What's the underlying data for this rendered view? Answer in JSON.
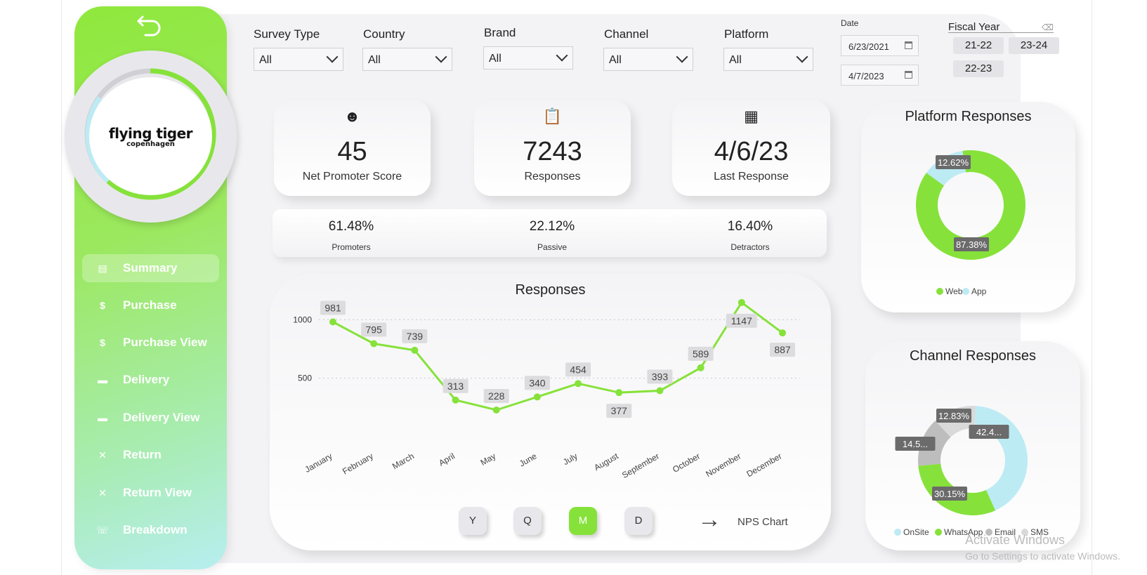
{
  "sidebar": {
    "items": [
      {
        "label": "Summary",
        "icon": "report-icon",
        "glyph": "▤"
      },
      {
        "label": "Purchase",
        "icon": "dollar-icon",
        "glyph": "$"
      },
      {
        "label": "Purchase View",
        "icon": "dollar-icon",
        "glyph": "$"
      },
      {
        "label": "Delivery",
        "icon": "truck-icon",
        "glyph": "▬"
      },
      {
        "label": "Delivery View",
        "icon": "truck-icon",
        "glyph": "▬"
      },
      {
        "label": "Return",
        "icon": "close-icon",
        "glyph": "✕"
      },
      {
        "label": "Return View",
        "icon": "close-icon",
        "glyph": "✕"
      },
      {
        "label": "Breakdown",
        "icon": "phone-icon",
        "glyph": "☏"
      }
    ],
    "active": "Summary"
  },
  "logo": {
    "main": "flying tiger",
    "sub": "copenhagen"
  },
  "filters": {
    "survey_type": {
      "label": "Survey Type",
      "value": "All"
    },
    "country": {
      "label": "Country",
      "value": "All"
    },
    "brand": {
      "label": "Brand",
      "value": "All"
    },
    "channel": {
      "label": "Channel",
      "value": "All"
    },
    "platform": {
      "label": "Platform",
      "value": "All"
    },
    "date": {
      "label": "Date",
      "start": "6/23/2021",
      "end": "4/7/2023"
    },
    "fiscal_year": {
      "label": "Fiscal Year",
      "options": [
        "21-22",
        "23-24",
        "22-23"
      ]
    }
  },
  "kpis": {
    "nps": {
      "value": "45",
      "label": "Net Promoter Score"
    },
    "responses": {
      "value": "7243",
      "label": "Responses"
    },
    "last_response": {
      "value": "4/6/23",
      "label": "Last Response"
    }
  },
  "breakdown": {
    "promoters": {
      "value": "61.48%",
      "label": "Promoters"
    },
    "passive": {
      "value": "22.12%",
      "label": "Passive"
    },
    "detractors": {
      "value": "16.40%",
      "label": "Detractors"
    }
  },
  "period_buttons": {
    "y": "Y",
    "q": "Q",
    "m": "M",
    "d": "D",
    "active": "M"
  },
  "nps_link": "NPS Chart",
  "colors": {
    "green": "#86e23a",
    "light_blue": "#bcebf4",
    "gray": "#bdbdbd",
    "light_gray": "#d9d9d9"
  },
  "chart_data": [
    {
      "type": "line",
      "title": "Responses",
      "x": [
        "January",
        "February",
        "March",
        "April",
        "May",
        "June",
        "July",
        "August",
        "September",
        "October",
        "November",
        "December"
      ],
      "y": [
        981,
        795,
        739,
        313,
        228,
        340,
        454,
        377,
        393,
        589,
        1147,
        887
      ],
      "yticks": [
        500,
        1000
      ],
      "ylim": [
        0,
        1200
      ],
      "grid": true
    },
    {
      "type": "pie",
      "title": "Platform Responses",
      "labels": [
        "Web",
        "App"
      ],
      "values": [
        87.38,
        12.62
      ],
      "value_labels": [
        "87.38%",
        "12.62%"
      ],
      "legend": "bottom"
    },
    {
      "type": "pie",
      "title": "Channel Responses",
      "labels": [
        "OnSite",
        "WhatsApp",
        "Email",
        "SMS"
      ],
      "values": [
        42.4,
        30.15,
        14.5,
        12.83
      ],
      "value_labels": [
        "42.4...",
        "30.15%",
        "14.5...",
        "12.83%"
      ],
      "legend": "bottom"
    }
  ],
  "watermark": {
    "line1": "Activate Windows",
    "line2": "Go to Settings to activate Windows."
  }
}
